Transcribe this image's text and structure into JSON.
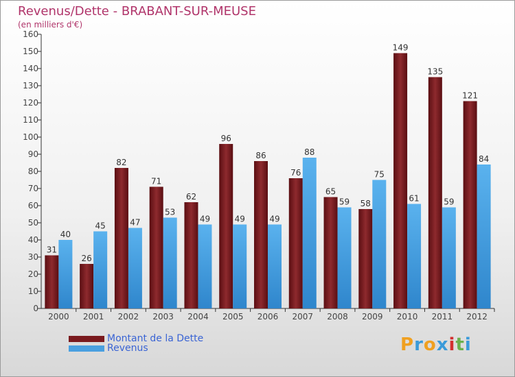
{
  "chart_data": {
    "type": "bar",
    "title": "Revenus/Dette - BRABANT-SUR-MEUSE",
    "subtitle": "(en milliers d'€)",
    "categories": [
      "2000",
      "2001",
      "2002",
      "2003",
      "2004",
      "2005",
      "2006",
      "2007",
      "2008",
      "2009",
      "2010",
      "2011",
      "2012"
    ],
    "series": [
      {
        "name": "Montant de la Dette",
        "color": "#7a1a1e",
        "values": [
          31,
          26,
          82,
          71,
          62,
          96,
          86,
          76,
          65,
          58,
          149,
          135,
          121
        ]
      },
      {
        "name": "Revenus",
        "color": "#4aa0e0",
        "values": [
          40,
          45,
          47,
          53,
          49,
          49,
          49,
          88,
          59,
          75,
          61,
          59,
          84
        ]
      }
    ],
    "ylim": [
      0,
      160
    ],
    "yticks": [
      0,
      10,
      20,
      30,
      40,
      50,
      60,
      70,
      80,
      90,
      100,
      110,
      120,
      130,
      140,
      150,
      160
    ],
    "grid": false,
    "legend": "bottom-left"
  },
  "logo": {
    "letters": [
      "P",
      "r",
      "o",
      "x",
      "i",
      "t",
      "i"
    ],
    "colors": [
      "#f0a020",
      "#3a9ad9",
      "#f0a020",
      "#3a9ad9",
      "#d23030",
      "#6ab04c",
      "#3a9ad9"
    ]
  }
}
